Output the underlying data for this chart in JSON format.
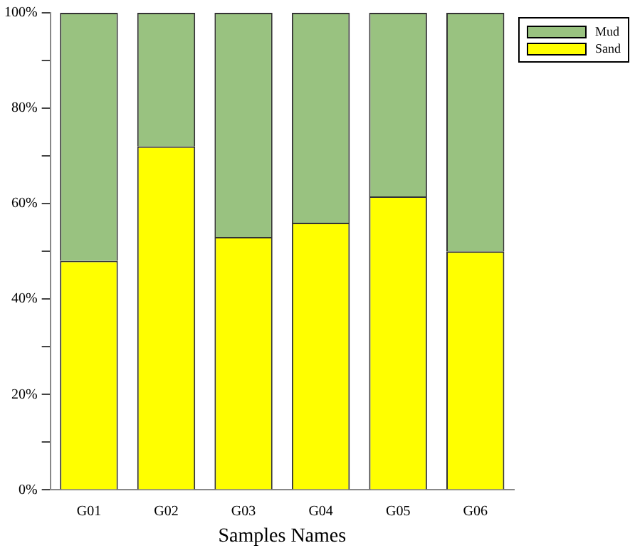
{
  "chart_data": {
    "type": "bar",
    "stacked": true,
    "xlabel": "Samples Names",
    "categories": [
      "G01",
      "G02",
      "G03",
      "G04",
      "G05",
      "G06"
    ],
    "series": [
      {
        "name": "Sand",
        "color": "#ffff00",
        "values": [
          48,
          72,
          53,
          56,
          61.5,
          50
        ]
      },
      {
        "name": "Mud",
        "color": "#99c280",
        "values": [
          52,
          28,
          47,
          44,
          38.5,
          50
        ]
      }
    ],
    "ylim": [
      0,
      100
    ],
    "yticks": [
      {
        "value": 0,
        "label": "0%"
      },
      {
        "value": 10,
        "label": null
      },
      {
        "value": 20,
        "label": "20%"
      },
      {
        "value": 30,
        "label": null
      },
      {
        "value": 40,
        "label": "40%"
      },
      {
        "value": 50,
        "label": null
      },
      {
        "value": 60,
        "label": "60%"
      },
      {
        "value": 70,
        "label": null
      },
      {
        "value": 80,
        "label": "80%"
      },
      {
        "value": 90,
        "label": null
      },
      {
        "value": 100,
        "label": "100%"
      }
    ],
    "grid": false,
    "legend": "top right"
  }
}
